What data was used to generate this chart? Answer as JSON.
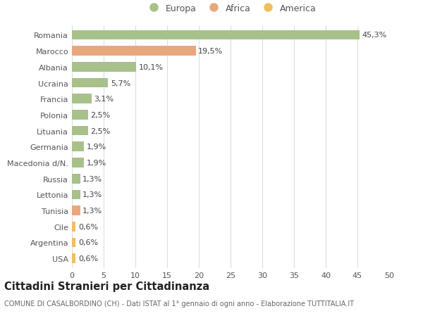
{
  "categories": [
    "Romania",
    "Marocco",
    "Albania",
    "Ucraina",
    "Francia",
    "Polonia",
    "Lituania",
    "Germania",
    "Macedonia d/N.",
    "Russia",
    "Lettonia",
    "Tunisia",
    "Cile",
    "Argentina",
    "USA"
  ],
  "values": [
    45.3,
    19.5,
    10.1,
    5.7,
    3.1,
    2.5,
    2.5,
    1.9,
    1.9,
    1.3,
    1.3,
    1.3,
    0.6,
    0.6,
    0.6
  ],
  "labels": [
    "45,3%",
    "19,5%",
    "10,1%",
    "5,7%",
    "3,1%",
    "2,5%",
    "2,5%",
    "1,9%",
    "1,9%",
    "1,3%",
    "1,3%",
    "1,3%",
    "0,6%",
    "0,6%",
    "0,6%"
  ],
  "colors": [
    "#a8c08a",
    "#e8a87c",
    "#a8c08a",
    "#a8c08a",
    "#a8c08a",
    "#a8c08a",
    "#a8c08a",
    "#a8c08a",
    "#a8c08a",
    "#a8c08a",
    "#a8c08a",
    "#e8a87c",
    "#f0c060",
    "#f0c060",
    "#f0c060"
  ],
  "legend_labels": [
    "Europa",
    "Africa",
    "America"
  ],
  "legend_colors": [
    "#a8c08a",
    "#e8a87c",
    "#f0c060"
  ],
  "xlim": [
    0,
    50
  ],
  "xticks": [
    0,
    5,
    10,
    15,
    20,
    25,
    30,
    35,
    40,
    45,
    50
  ],
  "title": "Cittadini Stranieri per Cittadinanza",
  "subtitle": "COMUNE DI CASALBORDINO (CH) - Dati ISTAT al 1° gennaio di ogni anno - Elaborazione TUTTITALIA.IT",
  "bg_color": "#ffffff",
  "grid_color": "#dddddd",
  "bar_height": 0.6,
  "label_fontsize": 8,
  "tick_fontsize": 8,
  "title_fontsize": 10.5,
  "subtitle_fontsize": 7
}
